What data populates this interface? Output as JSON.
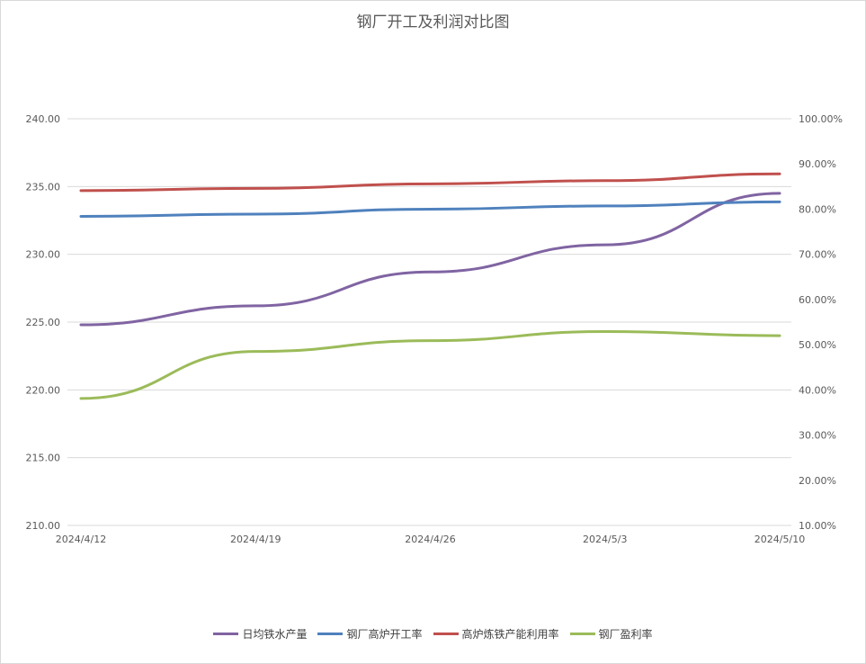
{
  "chart_data": {
    "type": "line",
    "title": "钢厂开工及利润对比图",
    "categories": [
      "2024/4/12",
      "2024/4/19",
      "2024/4/26",
      "2024/5/3",
      "2024/5/10"
    ],
    "y_left": {
      "min": 210,
      "max": 240,
      "step": 5,
      "tick_labels": [
        "210.00",
        "215.00",
        "220.00",
        "225.00",
        "230.00",
        "235.00",
        "240.00"
      ]
    },
    "y_right": {
      "min": 10,
      "max": 100,
      "step": 10,
      "tick_labels": [
        "10.00%",
        "20.00%",
        "30.00%",
        "40.00%",
        "50.00%",
        "60.00%",
        "70.00%",
        "80.00%",
        "90.00%",
        "100.00%"
      ]
    },
    "grid": true,
    "legend_position": "bottom",
    "series": [
      {
        "name": "日均铁水产量",
        "axis": "left",
        "color": "#8064a2",
        "values": [
          224.8,
          226.2,
          228.7,
          230.7,
          234.5
        ]
      },
      {
        "name": "钢厂高炉开工率",
        "axis": "right",
        "color": "#4f81bd",
        "values": [
          78.4,
          78.9,
          80.0,
          80.7,
          81.6
        ]
      },
      {
        "name": "高炉炼铁产能利用率",
        "axis": "right",
        "color": "#c0504d",
        "values": [
          84.1,
          84.6,
          85.6,
          86.3,
          87.8
        ]
      },
      {
        "name": "钢厂盈利率",
        "axis": "right",
        "color": "#9bbb59",
        "values": [
          38.1,
          48.5,
          50.9,
          52.9,
          52.0
        ]
      }
    ]
  }
}
